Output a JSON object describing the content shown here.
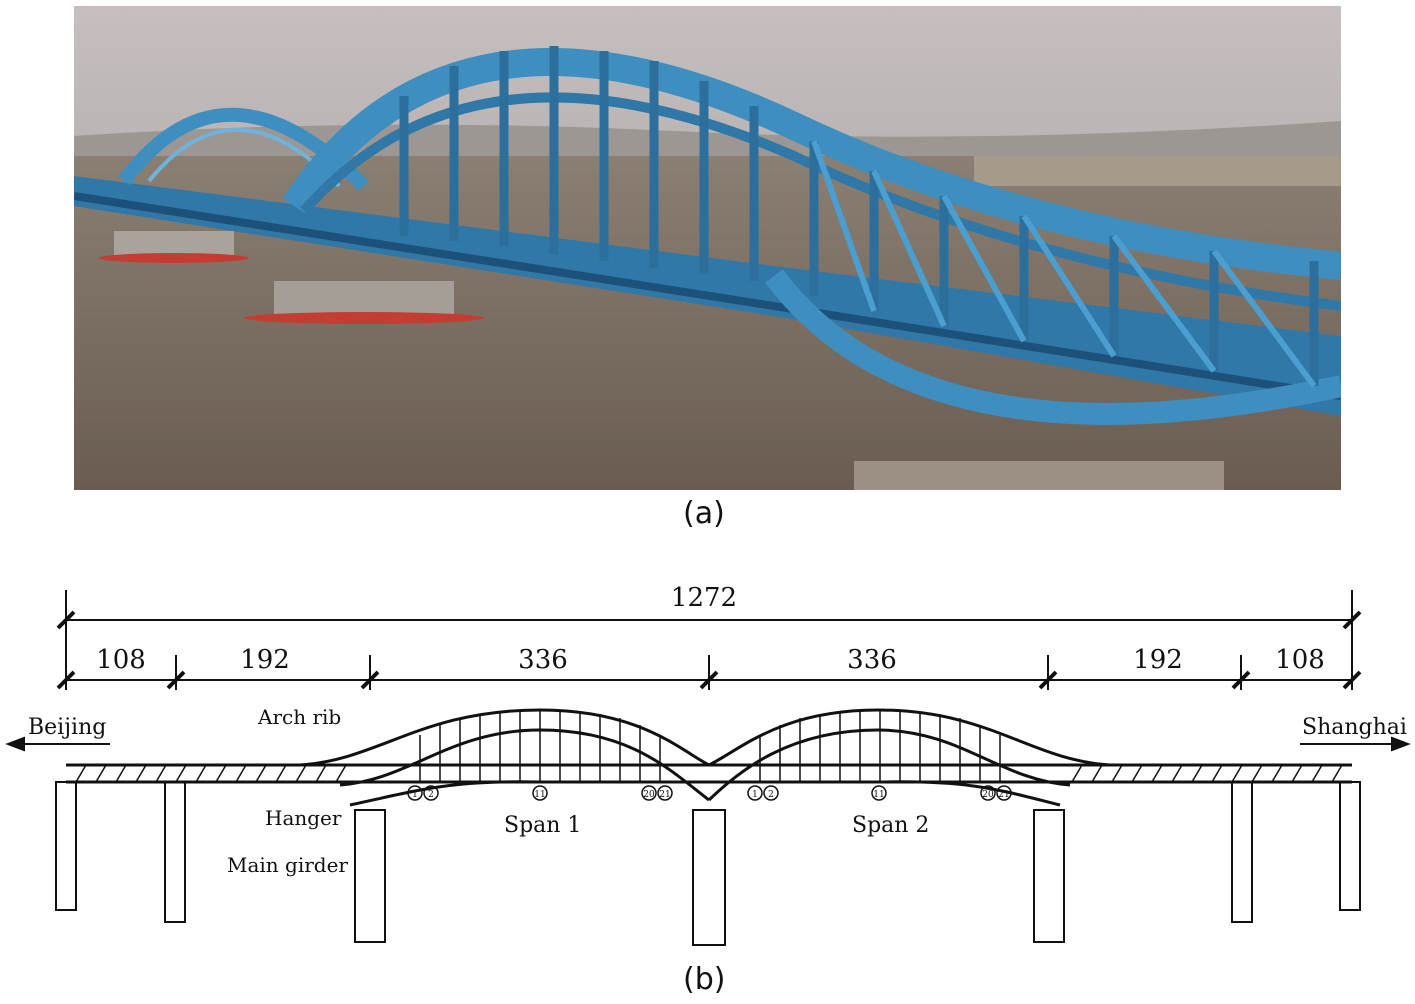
{
  "captions": {
    "photo": "(a)",
    "drawing": "(b)"
  },
  "dimensions": {
    "total": "1272",
    "spans": [
      "108",
      "192",
      "336",
      "336",
      "192",
      "108"
    ]
  },
  "directions": {
    "left": "Beijing",
    "right": "Shanghai"
  },
  "labels": {
    "arch_rib": "Arch rib",
    "hanger": "Hanger",
    "main_girder": "Main girder",
    "span1": "Span 1",
    "span2": "Span 2"
  },
  "hanger_numbers": [
    "1",
    "2",
    "11",
    "20",
    "21"
  ],
  "colors": {
    "steel_blue": "#3e8fc0",
    "steel_dark": "#23628c",
    "water": "#75695c",
    "sky": "#c8c0c0",
    "line": "#111111"
  }
}
